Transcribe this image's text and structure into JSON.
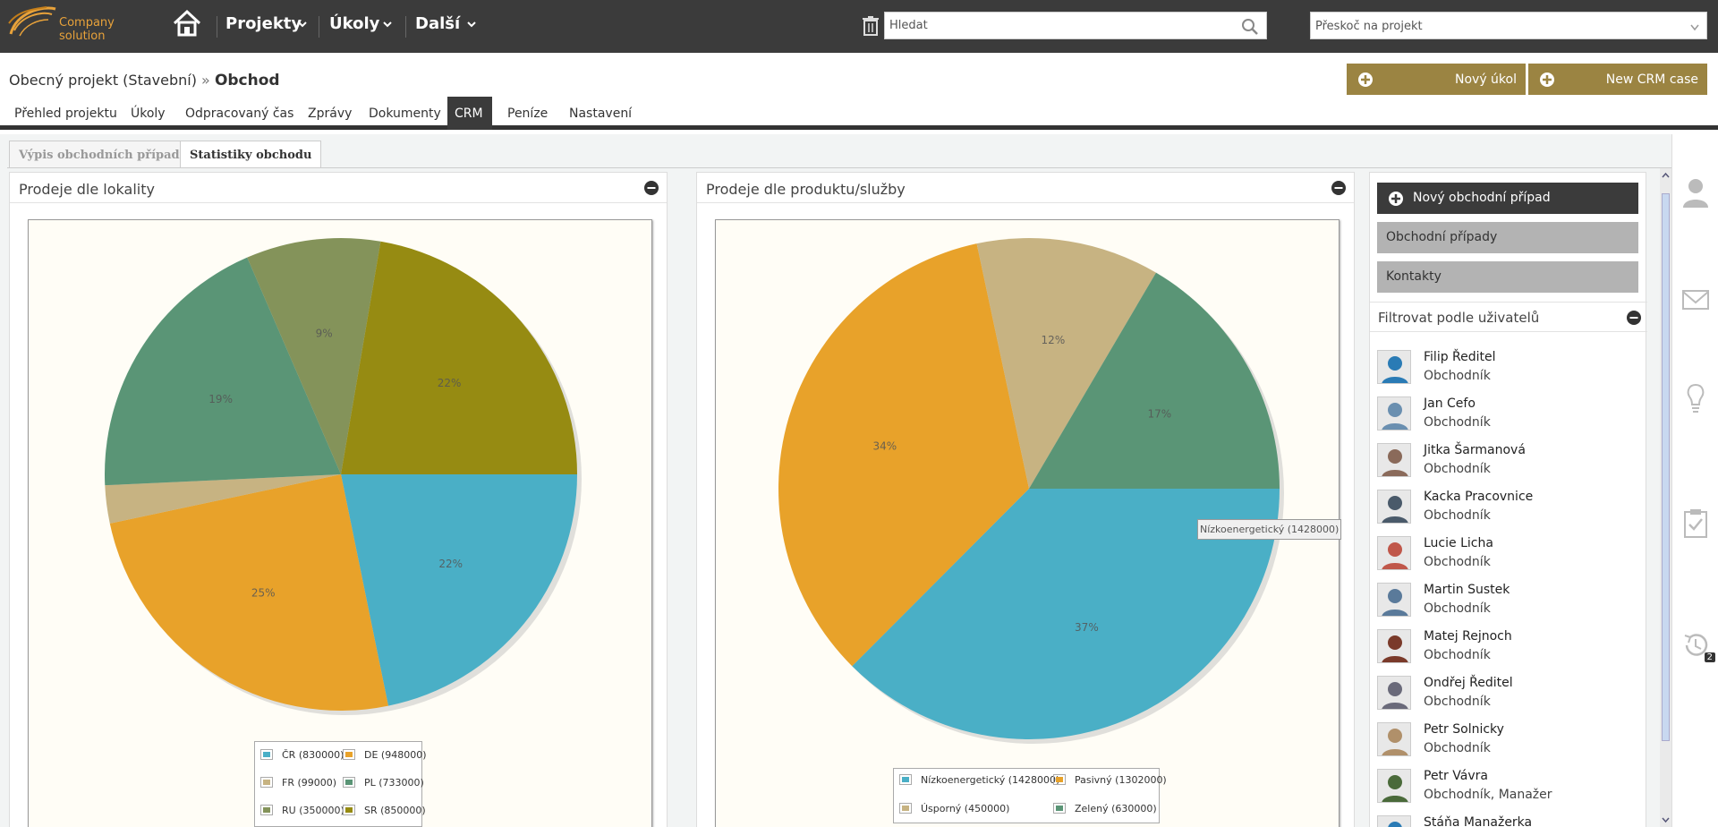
{
  "header": {
    "logo_text": "Company solution",
    "nav": [
      {
        "label": "Projekty"
      },
      {
        "label": "Úkoly"
      },
      {
        "label": "Další"
      }
    ],
    "search_placeholder": "Hledat",
    "jump_placeholder": "Přeskoč na projekt"
  },
  "project": {
    "breadcrumb_parent": "Obecný projekt (Stavební)",
    "breadcrumb_sep": "»",
    "breadcrumb_current": "Obchod",
    "new_task_label": "Nový úkol",
    "new_crm_label": "New CRM case"
  },
  "tabs": [
    "Přehled projektu",
    "Úkoly",
    "Odpracovaný čas",
    "Zprávy",
    "Dokumenty",
    "CRM",
    "Peníze",
    "Nastavení"
  ],
  "active_tab": "CRM",
  "subtabs": [
    "Výpis obchodních případů",
    "Statistiky obchodu"
  ],
  "active_subtab": "Statistiky obchodu",
  "panels": {
    "location_title": "Prodeje dle lokality",
    "product_title": "Prodeje dle produktu/služby"
  },
  "tooltip_text": "Nízkoenergetický (1428000)",
  "chart_data": [
    {
      "type": "pie",
      "title": "Prodeje dle lokality",
      "categories": [
        "ČR",
        "DE",
        "FR",
        "PL",
        "RU",
        "SR"
      ],
      "values": [
        830000,
        948000,
        99000,
        733000,
        350000,
        850000
      ],
      "labels": [
        "22%",
        "25%",
        "",
        "19%",
        "9%",
        "22%"
      ],
      "legend": [
        "ČR (830000)",
        "DE (948000)",
        "FR (99000)",
        "PL (733000)",
        "RU (350000)",
        "SR (850000)"
      ],
      "colors": [
        "#4aafc6",
        "#e8a22a",
        "#c7b382",
        "#5a9576",
        "#84935a",
        "#968b12"
      ],
      "legend_placement": "bottom"
    },
    {
      "type": "pie",
      "title": "Prodeje dle produktu/služby",
      "categories": [
        "Nízkoenergetický",
        "Pasivný",
        "Úsporný",
        "Zelený"
      ],
      "values": [
        1428000,
        1302000,
        450000,
        630000
      ],
      "labels": [
        "37%",
        "34%",
        "12%",
        "17%"
      ],
      "legend": [
        "Nízkoenergetický (1428000)",
        "Pasivný (1302000)",
        "Úsporný (450000)",
        "Zelený (630000)"
      ],
      "colors": [
        "#4aafc6",
        "#e8a22a",
        "#c7b382",
        "#5a9576"
      ],
      "legend_placement": "bottom"
    }
  ],
  "sidebar": {
    "new_case_label": "Nový obchodní případ",
    "cases_label": "Obchodní případy",
    "contacts_label": "Kontakty",
    "filter_title": "Filtrovat podle uživatelů",
    "users": [
      {
        "name": "Filip Ředitel",
        "role": "Obchodník"
      },
      {
        "name": "Jan Cefo",
        "role": "Obchodník"
      },
      {
        "name": "Jitka Šarmanová",
        "role": "Obchodník"
      },
      {
        "name": "Kacka Pracovnice",
        "role": "Obchodník"
      },
      {
        "name": "Lucie Licha",
        "role": "Obchodník"
      },
      {
        "name": "Martin Sustek",
        "role": "Obchodník"
      },
      {
        "name": "Matej Rejnoch",
        "role": "Obchodník"
      },
      {
        "name": "Ondřej Ředitel",
        "role": "Obchodník"
      },
      {
        "name": "Petr Solnicky",
        "role": "Obchodník"
      },
      {
        "name": "Petr Vávra",
        "role": "Obchodník, Manažer"
      },
      {
        "name": "Stáňa Manažerka",
        "role": ""
      }
    ]
  },
  "rail": {
    "history_badge": "2"
  }
}
